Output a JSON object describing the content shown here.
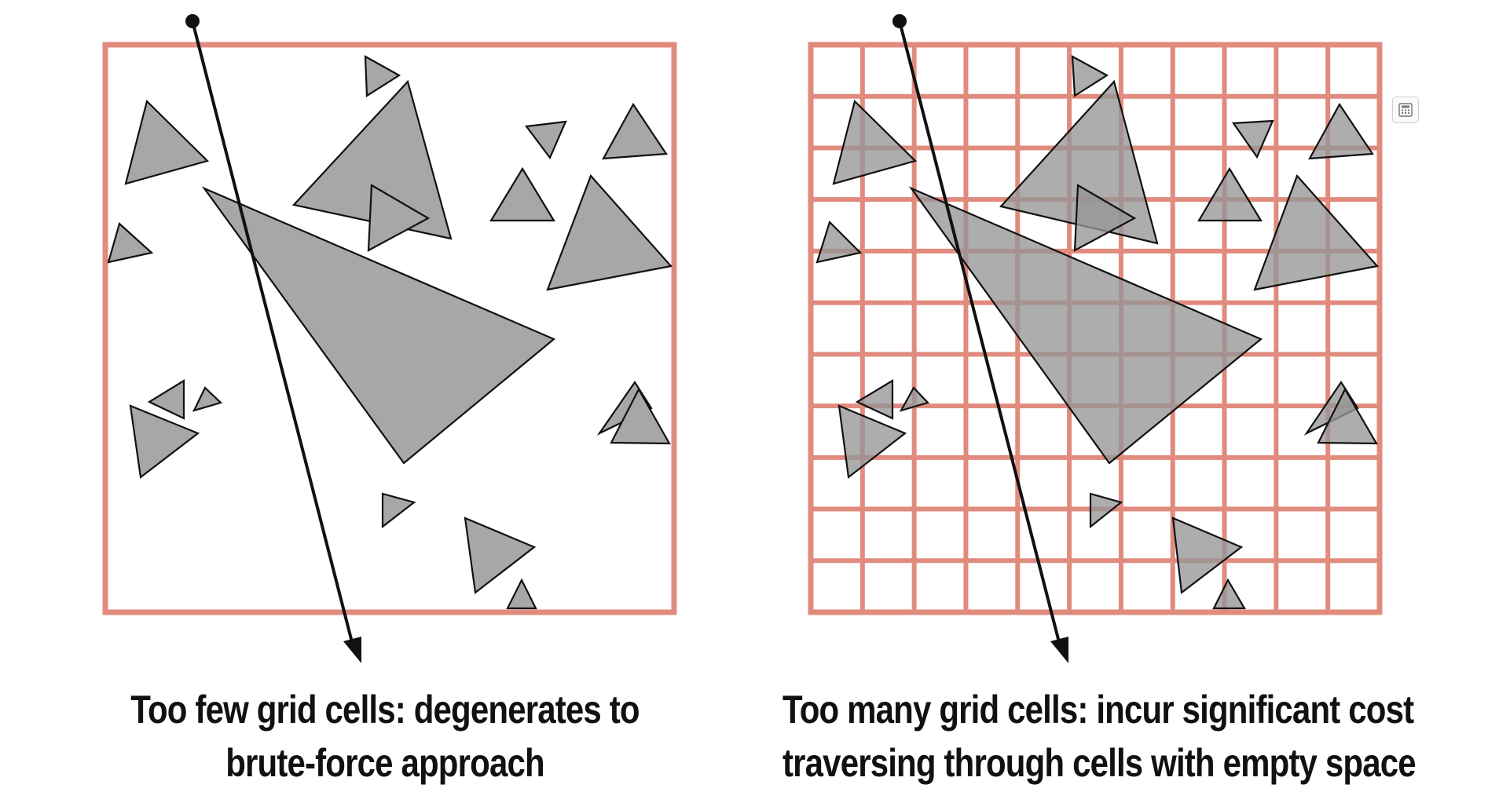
{
  "captions": {
    "left": {
      "line1": "Too few grid cells: degenerates to",
      "line2": "brute-force approach"
    },
    "right": {
      "line1": "Too many grid cells: incur significant cost",
      "line2": "traversing through cells with empty space"
    }
  },
  "panels": [
    {
      "name": "left-panel",
      "grid_divisions": 1
    },
    {
      "name": "right-panel",
      "grid_divisions": 11
    }
  ],
  "colors": {
    "grid": "#e08b7e",
    "triangle_fill": "#a7a7a7",
    "triangle_stroke": "#111111",
    "ray": "#111111"
  },
  "icons": {
    "widget": "calculator-icon"
  }
}
